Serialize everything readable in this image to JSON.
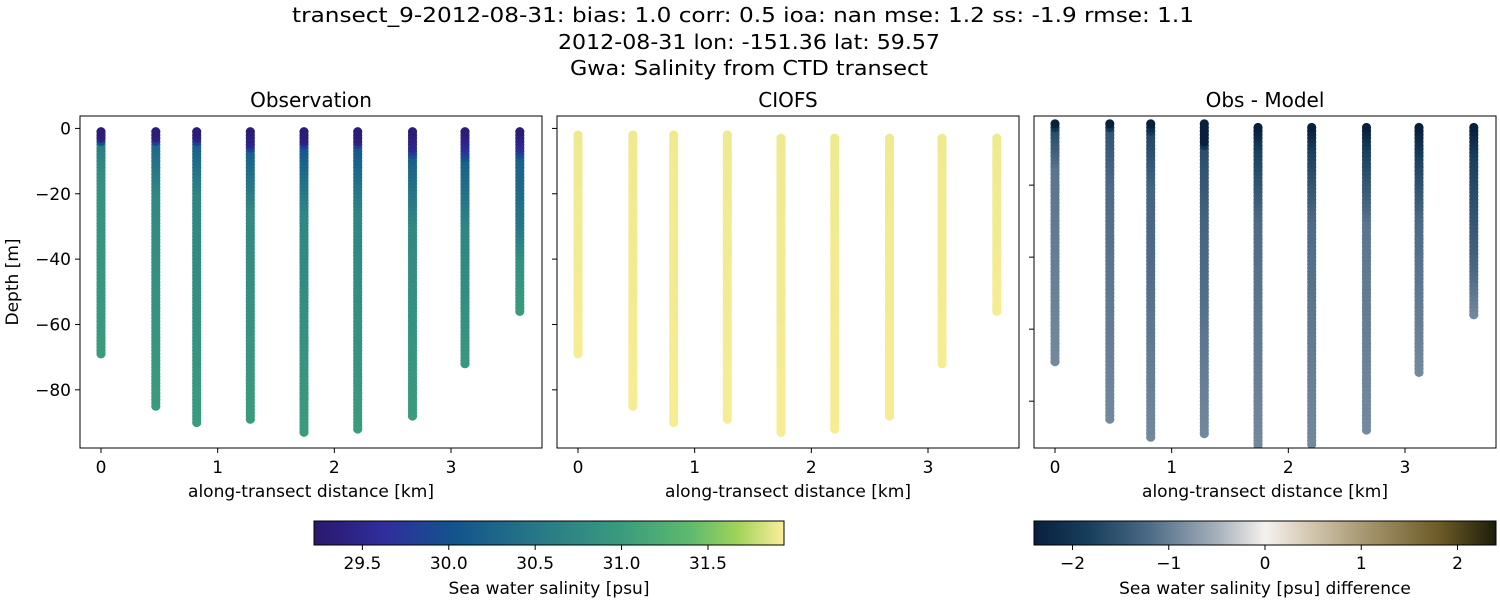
{
  "figure": {
    "suptitle_lines": [
      "transect_9-2012-08-31: bias: 1.0  corr: 0.5  ioa: nan  mse: 1.2  ss: -1.9  rmse: 1.1",
      "2012-08-31 lon: -151.36 lat: 59.57",
      "Gwa: Salinity from CTD transect"
    ]
  },
  "chart_data": [
    {
      "type": "scatter",
      "title": "Observation",
      "xlabel": "along-transect distance [km]",
      "ylabel": "Depth [m]",
      "xlim": [
        -0.18,
        3.78
      ],
      "ylim": [
        -97.8,
        3.8
      ],
      "xticks": [
        "0",
        "1",
        "2",
        "3"
      ],
      "yticks": [
        "0",
        "−20",
        "−40",
        "−60",
        "−80"
      ],
      "ytick_values": [
        0,
        -20,
        -40,
        -60,
        -80
      ],
      "xtick_values": [
        0,
        1,
        2,
        3
      ],
      "colormap": "haline",
      "stations": [
        {
          "x": 0.0,
          "top": -1,
          "bottom": -69,
          "profile": [
            [
              -1,
              29.3
            ],
            [
              -3,
              29.4
            ],
            [
              -5,
              30.6
            ],
            [
              -15,
              30.85
            ],
            [
              -69,
              31.0
            ]
          ]
        },
        {
          "x": 0.47,
          "top": -1,
          "bottom": -85,
          "profile": [
            [
              -1,
              29.3
            ],
            [
              -3,
              29.4
            ],
            [
              -5,
              30.3
            ],
            [
              -20,
              30.75
            ],
            [
              -85,
              31.0
            ]
          ]
        },
        {
          "x": 0.82,
          "top": -1,
          "bottom": -90,
          "profile": [
            [
              -1,
              29.3
            ],
            [
              -3,
              29.4
            ],
            [
              -5,
              30.2
            ],
            [
              -20,
              30.7
            ],
            [
              -90,
              31.0
            ]
          ]
        },
        {
          "x": 1.28,
          "top": -1,
          "bottom": -89,
          "profile": [
            [
              -1,
              29.3
            ],
            [
              -5,
              29.5
            ],
            [
              -7,
              30.2
            ],
            [
              -25,
              30.75
            ],
            [
              -89,
              31.0
            ]
          ]
        },
        {
          "x": 1.74,
          "top": -1,
          "bottom": -93,
          "profile": [
            [
              -1,
              29.3
            ],
            [
              -4,
              29.4
            ],
            [
              -6,
              30.1
            ],
            [
              -25,
              30.7
            ],
            [
              -93,
              31.0
            ]
          ]
        },
        {
          "x": 2.2,
          "top": -1,
          "bottom": -92,
          "profile": [
            [
              -1,
              29.3
            ],
            [
              -4,
              29.4
            ],
            [
              -6,
              30.1
            ],
            [
              -25,
              30.7
            ],
            [
              -92,
              31.0
            ]
          ]
        },
        {
          "x": 2.67,
          "top": -1,
          "bottom": -88,
          "profile": [
            [
              -1,
              29.3
            ],
            [
              -6,
              29.5
            ],
            [
              -9,
              30.2
            ],
            [
              -30,
              30.75
            ],
            [
              -88,
              31.0
            ]
          ]
        },
        {
          "x": 3.12,
          "top": -1,
          "bottom": -72,
          "profile": [
            [
              -1,
              29.3
            ],
            [
              -6,
              29.6
            ],
            [
              -10,
              30.2
            ],
            [
              -30,
              30.7
            ],
            [
              -72,
              30.95
            ]
          ]
        },
        {
          "x": 3.59,
          "top": -1,
          "bottom": -56,
          "profile": [
            [
              -1,
              29.3
            ],
            [
              -6,
              29.6
            ],
            [
              -9,
              30.2
            ],
            [
              -30,
              30.5
            ],
            [
              -40,
              30.85
            ],
            [
              -56,
              31.0
            ]
          ]
        }
      ]
    },
    {
      "type": "scatter",
      "title": "CIOFS",
      "xlabel": "along-transect distance [km]",
      "xlim": [
        -0.18,
        3.78
      ],
      "ylim": [
        -97.8,
        3.8
      ],
      "xticks": [
        "0",
        "1",
        "2",
        "3"
      ],
      "xtick_values": [
        0,
        1,
        2,
        3
      ],
      "ytick_values": [
        0,
        -20,
        -40,
        -60,
        -80
      ],
      "colormap": "haline",
      "stations": [
        {
          "x": 0.0,
          "top": -2,
          "bottom": -69,
          "profile": [
            [
              -2,
              31.9
            ],
            [
              -69,
              31.92
            ]
          ]
        },
        {
          "x": 0.47,
          "top": -2,
          "bottom": -85,
          "profile": [
            [
              -2,
              31.9
            ],
            [
              -85,
              31.92
            ]
          ]
        },
        {
          "x": 0.82,
          "top": -2,
          "bottom": -90,
          "profile": [
            [
              -2,
              31.9
            ],
            [
              -90,
              31.92
            ]
          ]
        },
        {
          "x": 1.28,
          "top": -2,
          "bottom": -89,
          "profile": [
            [
              -2,
              31.9
            ],
            [
              -89,
              31.92
            ]
          ]
        },
        {
          "x": 1.74,
          "top": -3,
          "bottom": -93,
          "profile": [
            [
              -3,
              31.9
            ],
            [
              -93,
              31.92
            ]
          ]
        },
        {
          "x": 2.2,
          "top": -3,
          "bottom": -92,
          "profile": [
            [
              -3,
              31.9
            ],
            [
              -92,
              31.92
            ]
          ]
        },
        {
          "x": 2.67,
          "top": -3,
          "bottom": -88,
          "profile": [
            [
              -3,
              31.9
            ],
            [
              -88,
              31.92
            ]
          ]
        },
        {
          "x": 3.12,
          "top": -3,
          "bottom": -72,
          "profile": [
            [
              -3,
              31.9
            ],
            [
              -72,
              31.92
            ]
          ]
        },
        {
          "x": 3.59,
          "top": -3,
          "bottom": -56,
          "profile": [
            [
              -3,
              31.9
            ],
            [
              -56,
              31.92
            ]
          ]
        }
      ]
    },
    {
      "type": "scatter",
      "title": "Obs - Model",
      "xlabel": "along-transect distance [km]",
      "xlim": [
        -0.18,
        3.78
      ],
      "ylim": [
        -93.0,
        -0.8
      ],
      "xticks": [
        "0",
        "1",
        "2",
        "3"
      ],
      "xtick_values": [
        0,
        1,
        2,
        3
      ],
      "ytick_values": [
        -20,
        -40,
        -60,
        -80
      ],
      "colormap": "diff",
      "stations": [
        {
          "x": 0.0,
          "top": -3,
          "bottom": -69,
          "profile": [
            [
              -3,
              -2.4
            ],
            [
              -5,
              -1.6
            ],
            [
              -15,
              -1.1
            ],
            [
              -69,
              -0.9
            ]
          ]
        },
        {
          "x": 0.47,
          "top": -3,
          "bottom": -85,
          "profile": [
            [
              -3,
              -2.4
            ],
            [
              -5,
              -1.5
            ],
            [
              -20,
              -1.2
            ],
            [
              -85,
              -0.9
            ]
          ]
        },
        {
          "x": 0.82,
          "top": -3,
          "bottom": -90,
          "profile": [
            [
              -3,
              -2.4
            ],
            [
              -6,
              -1.7
            ],
            [
              -20,
              -1.3
            ],
            [
              -90,
              -0.9
            ]
          ]
        },
        {
          "x": 1.28,
          "top": -3,
          "bottom": -89,
          "profile": [
            [
              -3,
              -2.5
            ],
            [
              -8,
              -2.4
            ],
            [
              -10,
              -1.6
            ],
            [
              -30,
              -1.3
            ],
            [
              -89,
              -0.9
            ]
          ]
        },
        {
          "x": 1.74,
          "top": -4,
          "bottom": -93,
          "profile": [
            [
              -4,
              -2.4
            ],
            [
              -10,
              -1.8
            ],
            [
              -30,
              -1.2
            ],
            [
              -93,
              -0.9
            ]
          ]
        },
        {
          "x": 2.2,
          "top": -4,
          "bottom": -92,
          "profile": [
            [
              -4,
              -2.4
            ],
            [
              -10,
              -1.8
            ],
            [
              -30,
              -1.2
            ],
            [
              -92,
              -0.9
            ]
          ]
        },
        {
          "x": 2.67,
          "top": -4,
          "bottom": -88,
          "profile": [
            [
              -4,
              -2.4
            ],
            [
              -10,
              -1.8
            ],
            [
              -30,
              -1.1
            ],
            [
              -88,
              -0.9
            ]
          ]
        },
        {
          "x": 3.12,
          "top": -4,
          "bottom": -72,
          "profile": [
            [
              -4,
              -2.4
            ],
            [
              -12,
              -1.8
            ],
            [
              -30,
              -1.2
            ],
            [
              -72,
              -0.9
            ]
          ]
        },
        {
          "x": 3.59,
          "top": -4,
          "bottom": -56,
          "profile": [
            [
              -4,
              -2.4
            ],
            [
              -12,
              -1.8
            ],
            [
              -40,
              -1.3
            ],
            [
              -56,
              -0.9
            ]
          ]
        }
      ]
    }
  ],
  "colorbars": [
    {
      "name": "haline",
      "label": "Sea water salinity [psu]",
      "range": [
        29.22,
        31.94
      ],
      "ticks": [
        "29.5",
        "30.0",
        "30.5",
        "31.0",
        "31.5"
      ],
      "tick_values": [
        29.5,
        30.0,
        30.5,
        31.0,
        31.5
      ],
      "stops": [
        [
          0,
          "#2a186c"
        ],
        [
          0.15,
          "#2f2e9c"
        ],
        [
          0.3,
          "#12548d"
        ],
        [
          0.5,
          "#2a7d86"
        ],
        [
          0.65,
          "#3a9a7e"
        ],
        [
          0.8,
          "#5dba6e"
        ],
        [
          0.9,
          "#9fd35a"
        ],
        [
          1,
          "#fdee99"
        ]
      ]
    },
    {
      "name": "diff",
      "label": "Sea water salinity [psu] difference",
      "range": [
        -2.4,
        2.4
      ],
      "ticks": [
        "−2",
        "−1",
        "0",
        "1",
        "2"
      ],
      "tick_values": [
        -2,
        -1,
        0,
        1,
        2
      ],
      "stops": [
        [
          0,
          "#08203e"
        ],
        [
          0.12,
          "#173f5c"
        ],
        [
          0.25,
          "#4d6b86"
        ],
        [
          0.4,
          "#a8b2bd"
        ],
        [
          0.5,
          "#f5f1ee"
        ],
        [
          0.6,
          "#d2c6ae"
        ],
        [
          0.75,
          "#9a8a5f"
        ],
        [
          0.88,
          "#6b5a25"
        ],
        [
          1,
          "#1c1d0b"
        ]
      ]
    }
  ]
}
